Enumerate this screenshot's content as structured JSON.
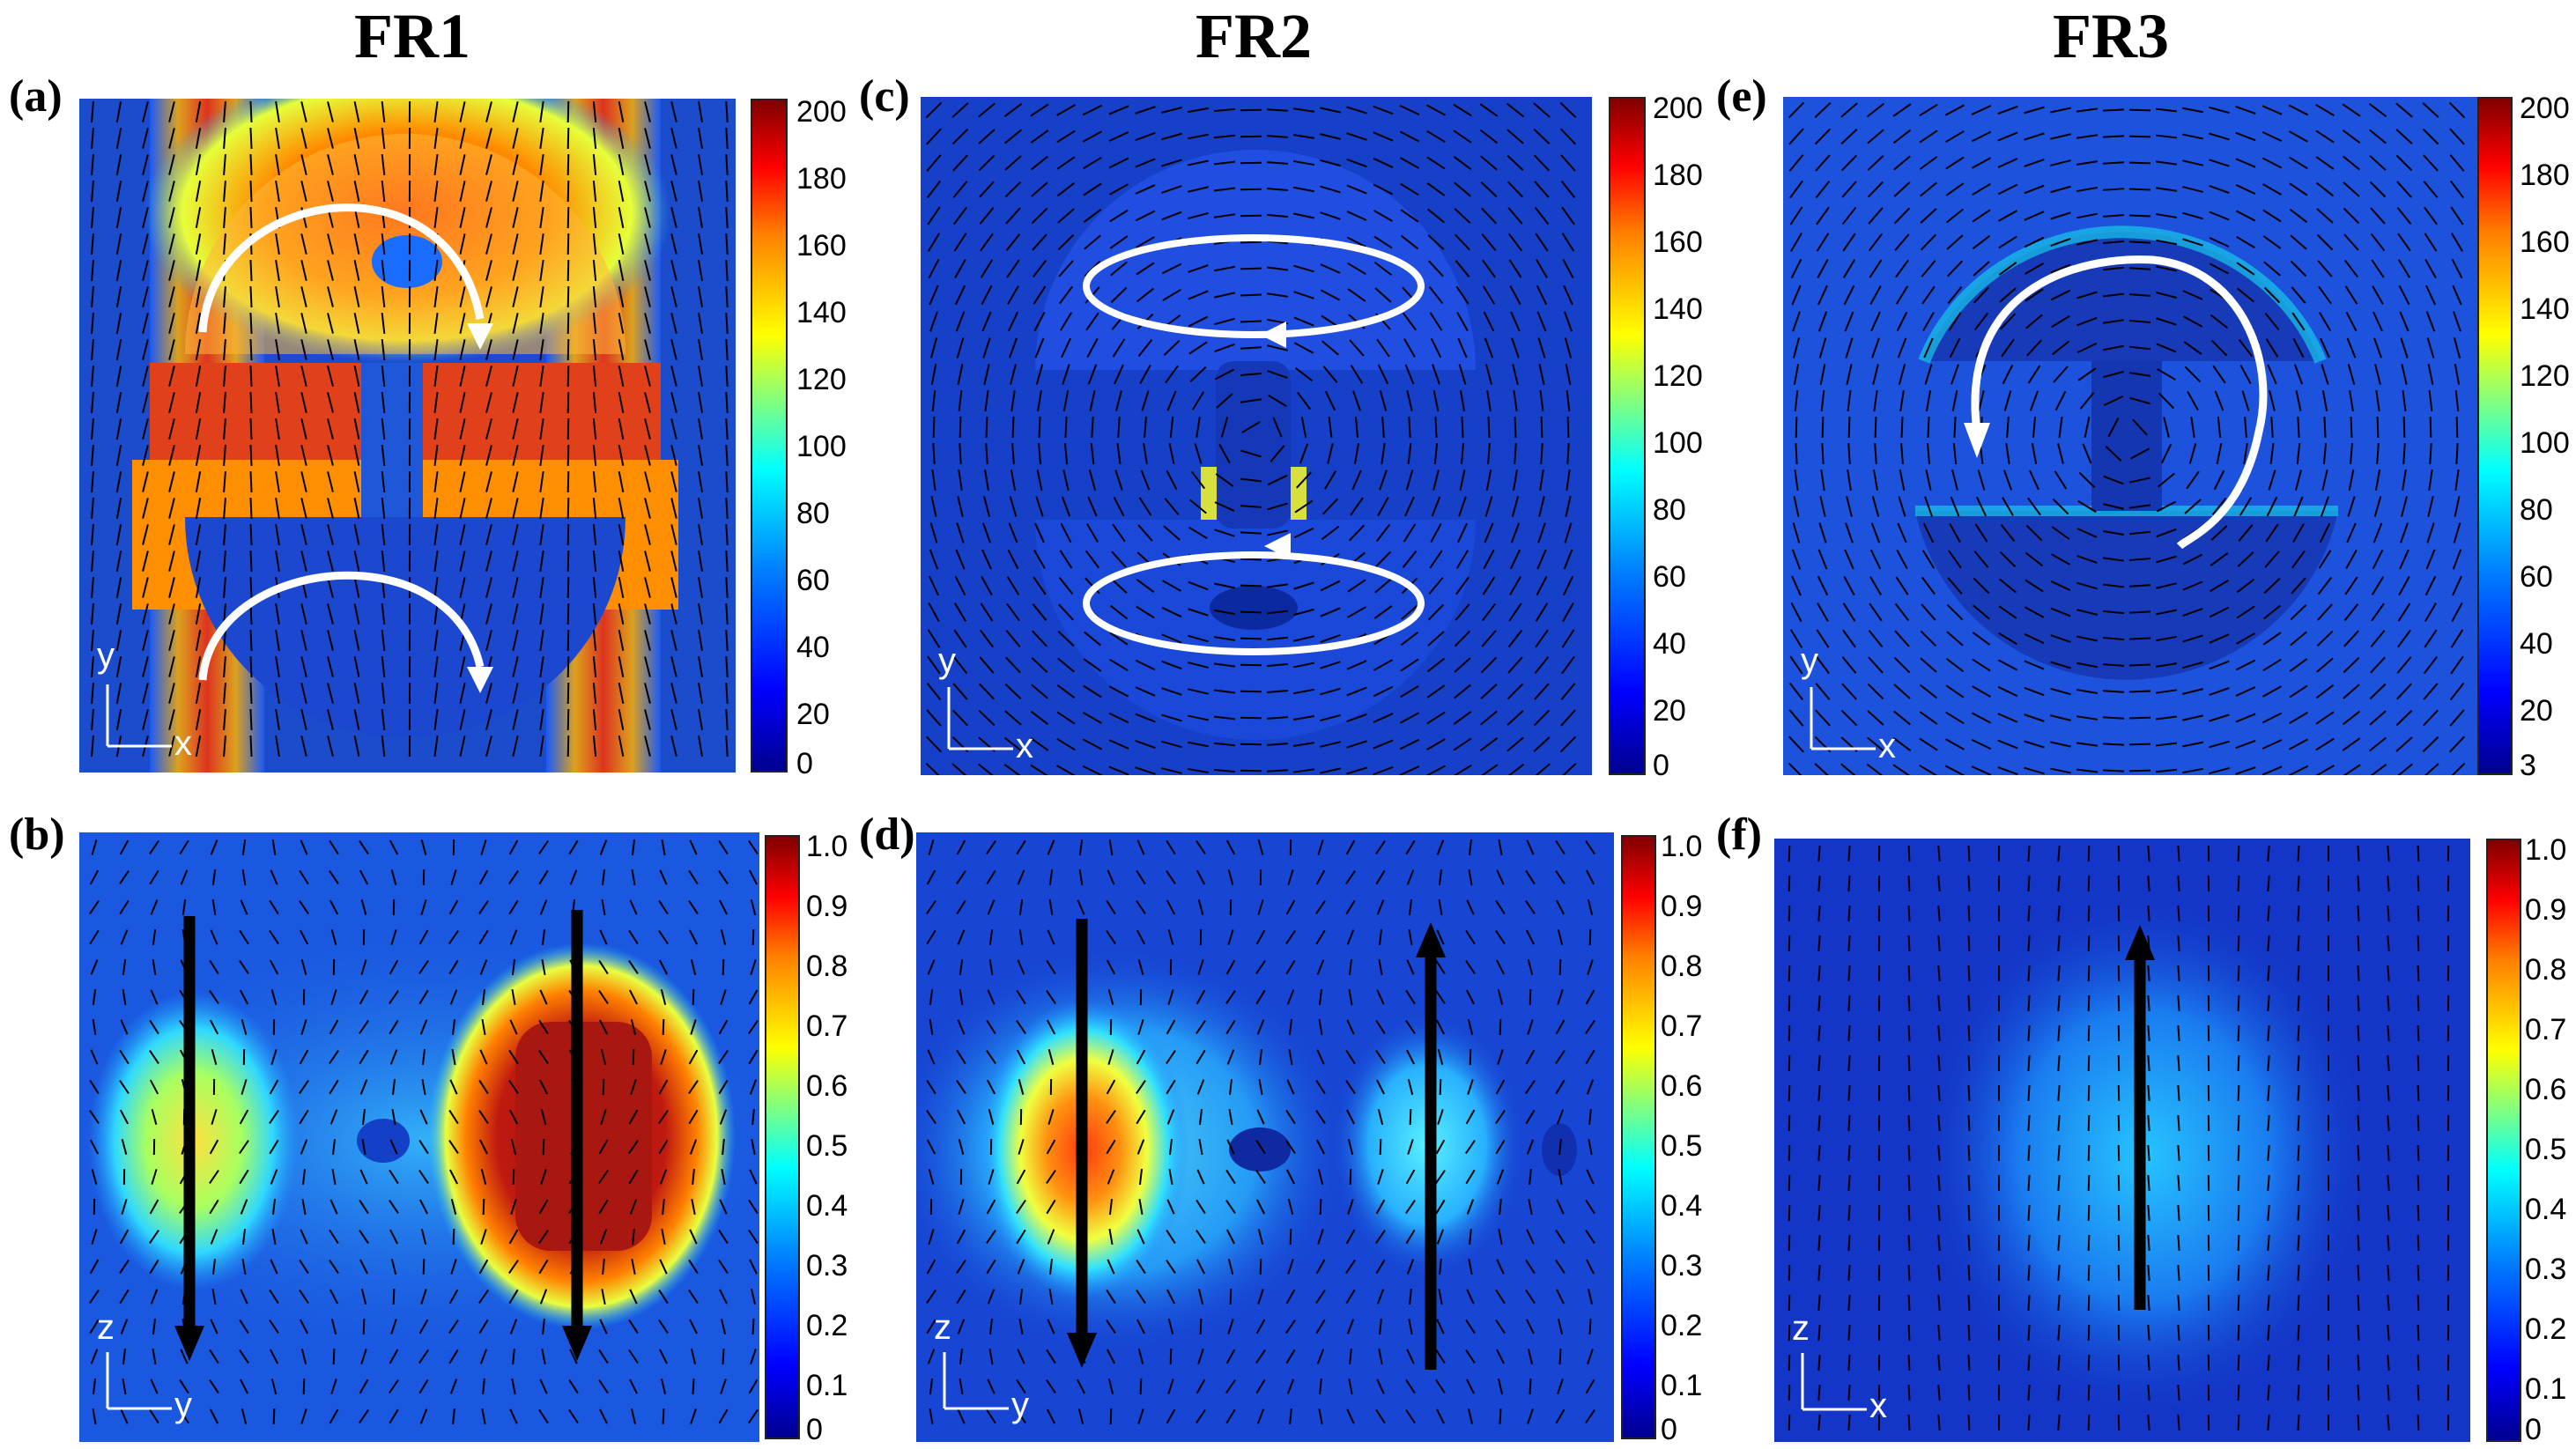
{
  "figure": {
    "columns": [
      {
        "title": "FR1"
      },
      {
        "title": "FR2"
      },
      {
        "title": "FR3"
      }
    ],
    "panels": [
      {
        "label": "(a)",
        "colorbar_ticks": [
          "200",
          "180",
          "160",
          "140",
          "120",
          "100",
          "80",
          "60",
          "40",
          "20",
          "0"
        ],
        "axes": {
          "vertical": "y",
          "horizontal": "x"
        },
        "field": "electric field magnitude map, xy plane"
      },
      {
        "label": "(b)",
        "colorbar_ticks": [
          "1.0",
          "0.9",
          "0.8",
          "0.7",
          "0.6",
          "0.5",
          "0.4",
          "0.3",
          "0.2",
          "0.1",
          "0"
        ],
        "axes": {
          "vertical": "z",
          "horizontal": "y"
        },
        "field": "normalized field map, yz plane"
      },
      {
        "label": "(c)",
        "colorbar_ticks": [
          "200",
          "180",
          "160",
          "140",
          "120",
          "100",
          "80",
          "60",
          "40",
          "20",
          "0"
        ],
        "axes": {
          "vertical": "y",
          "horizontal": "x"
        },
        "field": "electric field magnitude map, xy plane"
      },
      {
        "label": "(d)",
        "colorbar_ticks": [
          "1.0",
          "0.9",
          "0.8",
          "0.7",
          "0.6",
          "0.5",
          "0.4",
          "0.3",
          "0.2",
          "0.1",
          "0"
        ],
        "axes": {
          "vertical": "z",
          "horizontal": "y"
        },
        "field": "normalized field map, yz plane"
      },
      {
        "label": "(e)",
        "colorbar_ticks": [
          "200",
          "180",
          "160",
          "140",
          "120",
          "100",
          "80",
          "60",
          "40",
          "20",
          "3"
        ],
        "axes": {
          "vertical": "y",
          "horizontal": "x"
        },
        "field": "electric field magnitude map, xy plane"
      },
      {
        "label": "(f)",
        "colorbar_ticks": [
          "1.0",
          "0.9",
          "0.8",
          "0.7",
          "0.6",
          "0.5",
          "0.4",
          "0.3",
          "0.2",
          "0.1",
          "0"
        ],
        "axes": {
          "vertical": "z",
          "horizontal": "x"
        },
        "field": "normalized field map, xz plane"
      }
    ]
  },
  "colors": {
    "jet_low": "#00008f",
    "jet_mid": "#00ffff",
    "jet_high": "#800000",
    "arrow_white": "#ffffff",
    "arrow_black": "#000000"
  }
}
